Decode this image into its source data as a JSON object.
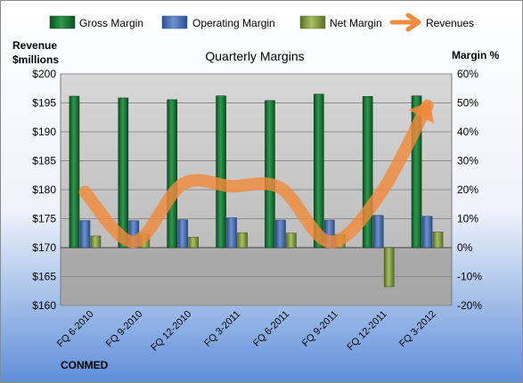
{
  "chart_data": {
    "type": "bar",
    "title": "Quarterly Margins",
    "company": "CONMED",
    "left_axis": {
      "label_line1": "Revenue",
      "label_line2": "$millions",
      "min": 160,
      "max": 200,
      "step": 5,
      "prefix": "$"
    },
    "right_axis": {
      "label": "Margin %",
      "min": -20,
      "max": 60,
      "step": 10,
      "suffix": "%"
    },
    "categories": [
      "FQ 6-2010",
      "FQ 9-2010",
      "FQ 12-2010",
      "FQ 3-2011",
      "FQ 6-2011",
      "FQ 9-2011",
      "FQ 12-2011",
      "FQ 3-2012"
    ],
    "series": [
      {
        "name": "Gross Margin",
        "kind": "bar",
        "axis": "right",
        "color": "#1e7a3a",
        "values": [
          52.3,
          51.7,
          51.1,
          52.4,
          50.8,
          53.0,
          52.2,
          52.4
        ]
      },
      {
        "name": "Operating Margin",
        "kind": "bar",
        "axis": "right",
        "color": "#4a6fb0",
        "values": [
          9.3,
          9.3,
          9.6,
          10.3,
          9.5,
          9.5,
          11.1,
          10.8
        ]
      },
      {
        "name": "Net Margin",
        "kind": "bar",
        "axis": "right",
        "color": "#8aa24a",
        "values": [
          4.0,
          4.7,
          3.6,
          5.1,
          5.0,
          4.5,
          -13.5,
          5.4
        ]
      },
      {
        "name": "Revenues",
        "kind": "line",
        "axis": "left",
        "color": "#f08a3c",
        "values": [
          179.6,
          171.0,
          181.0,
          180.6,
          180.3,
          171.0,
          178.8,
          194.5
        ]
      }
    ],
    "legend_position": "top",
    "grid": true
  }
}
